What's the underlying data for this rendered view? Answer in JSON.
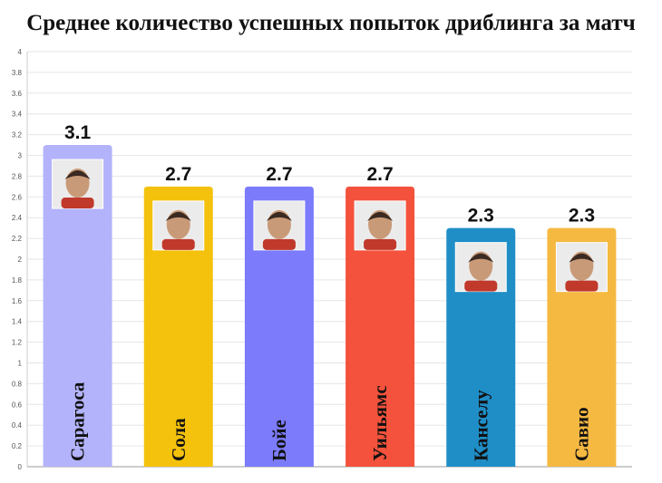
{
  "title": "Среднее количество успешных попыток дриблинга за матч",
  "chart_data": {
    "type": "bar",
    "title": "Среднее количество успешных попыток дриблинга за матч",
    "xlabel": "",
    "ylabel": "",
    "ylim": [
      0,
      4
    ],
    "yticks": [
      "0",
      "0.2",
      "0.4",
      "0.6",
      "0.8",
      "1",
      "1.2",
      "1.4",
      "1.6",
      "1.8",
      "2",
      "2.2",
      "2.4",
      "2.6",
      "2.8",
      "3",
      "3.2",
      "3.4",
      "3.6",
      "3.8",
      "4"
    ],
    "grid": true,
    "categories": [
      "Сарагоса",
      "Сола",
      "Бойе",
      "Уильямс",
      "Канселу",
      "Савио"
    ],
    "values": [
      3.1,
      2.7,
      2.7,
      2.7,
      2.3,
      2.3
    ],
    "value_labels": [
      "3.1",
      "2.7",
      "2.7",
      "2.7",
      "2.3",
      "2.3"
    ],
    "colors": [
      "#b3b3fb",
      "#f4c20d",
      "#7b7bfb",
      "#f4523c",
      "#1f8ec7",
      "#f5b942"
    ],
    "photo_icons": [
      "player-photo-icon",
      "player-photo-icon",
      "player-photo-icon",
      "player-photo-icon",
      "player-photo-icon",
      "player-photo-icon"
    ]
  }
}
